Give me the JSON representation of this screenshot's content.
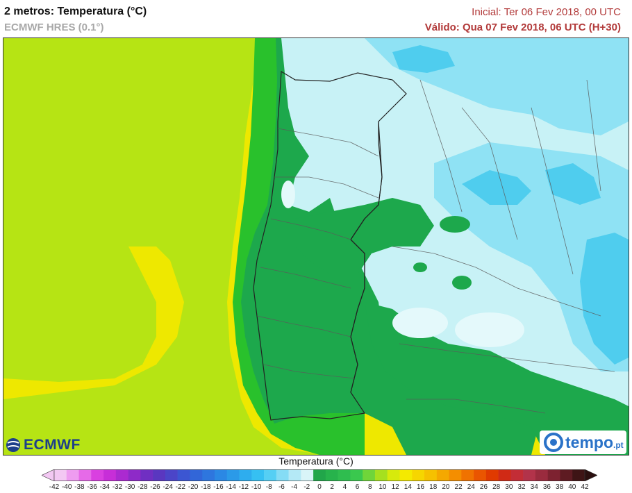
{
  "header": {
    "title": "2 metros: Temperatura (°C)",
    "model": "ECMWF HRES (0.1°)",
    "initial": "Inicial: Ter 06 Fev 2018, 00 UTC",
    "valid": "Válido: Qua 07 Fev 2018, 06 UTC (H+30)"
  },
  "logos": {
    "left": "ECMWF",
    "right_main": "tempo",
    "right_suffix": ".pt"
  },
  "legend": {
    "title": "Temperatura (°C)",
    "ticks": [
      "-42",
      "-40",
      "-38",
      "-36",
      "-34",
      "-32",
      "-30",
      "-28",
      "-26",
      "-24",
      "-22",
      "-20",
      "-18",
      "-16",
      "-14",
      "-12",
      "-10",
      "-8",
      "-6",
      "-4",
      "-2",
      "0",
      "2",
      "4",
      "6",
      "8",
      "10",
      "12",
      "14",
      "16",
      "18",
      "20",
      "22",
      "24",
      "26",
      "28",
      "30",
      "32",
      "34",
      "36",
      "38",
      "40",
      "42"
    ],
    "colors": [
      "#f3c8f3",
      "#ee9cf0",
      "#e66ae8",
      "#d940e0",
      "#c72ed8",
      "#ab2ad0",
      "#8e2ac8",
      "#702fc2",
      "#5a37c0",
      "#4b45c8",
      "#3c56d2",
      "#3266d8",
      "#2e76de",
      "#2b88e4",
      "#2b9ae8",
      "#2eadee",
      "#36c0f2",
      "#55cff4",
      "#85dcf5",
      "#b4e9f6",
      "#d9f4f8",
      "#21a64a",
      "#27b34c",
      "#2fbd4f",
      "#3ac84e",
      "#6fd53a",
      "#a6e01f",
      "#d7ea0c",
      "#f4ea00",
      "#f6d600",
      "#f6c100",
      "#f5a800",
      "#f48e00",
      "#f07200",
      "#ea5500",
      "#e03a00",
      "#d02a15",
      "#c32d36",
      "#b2334a",
      "#9a2b3e",
      "#7d2230",
      "#5e1b22",
      "#3e1415"
    ]
  },
  "colors": {
    "sea_warm": "#eee800",
    "sea_mid": "#b6e414",
    "coast_green": "#29c12c",
    "land_green": "#1da84c",
    "land_cold": "#c8f2f6",
    "land_cold2": "#8fe2f4",
    "land_cold3": "#4fcdee",
    "border": "#5a5a5a"
  }
}
